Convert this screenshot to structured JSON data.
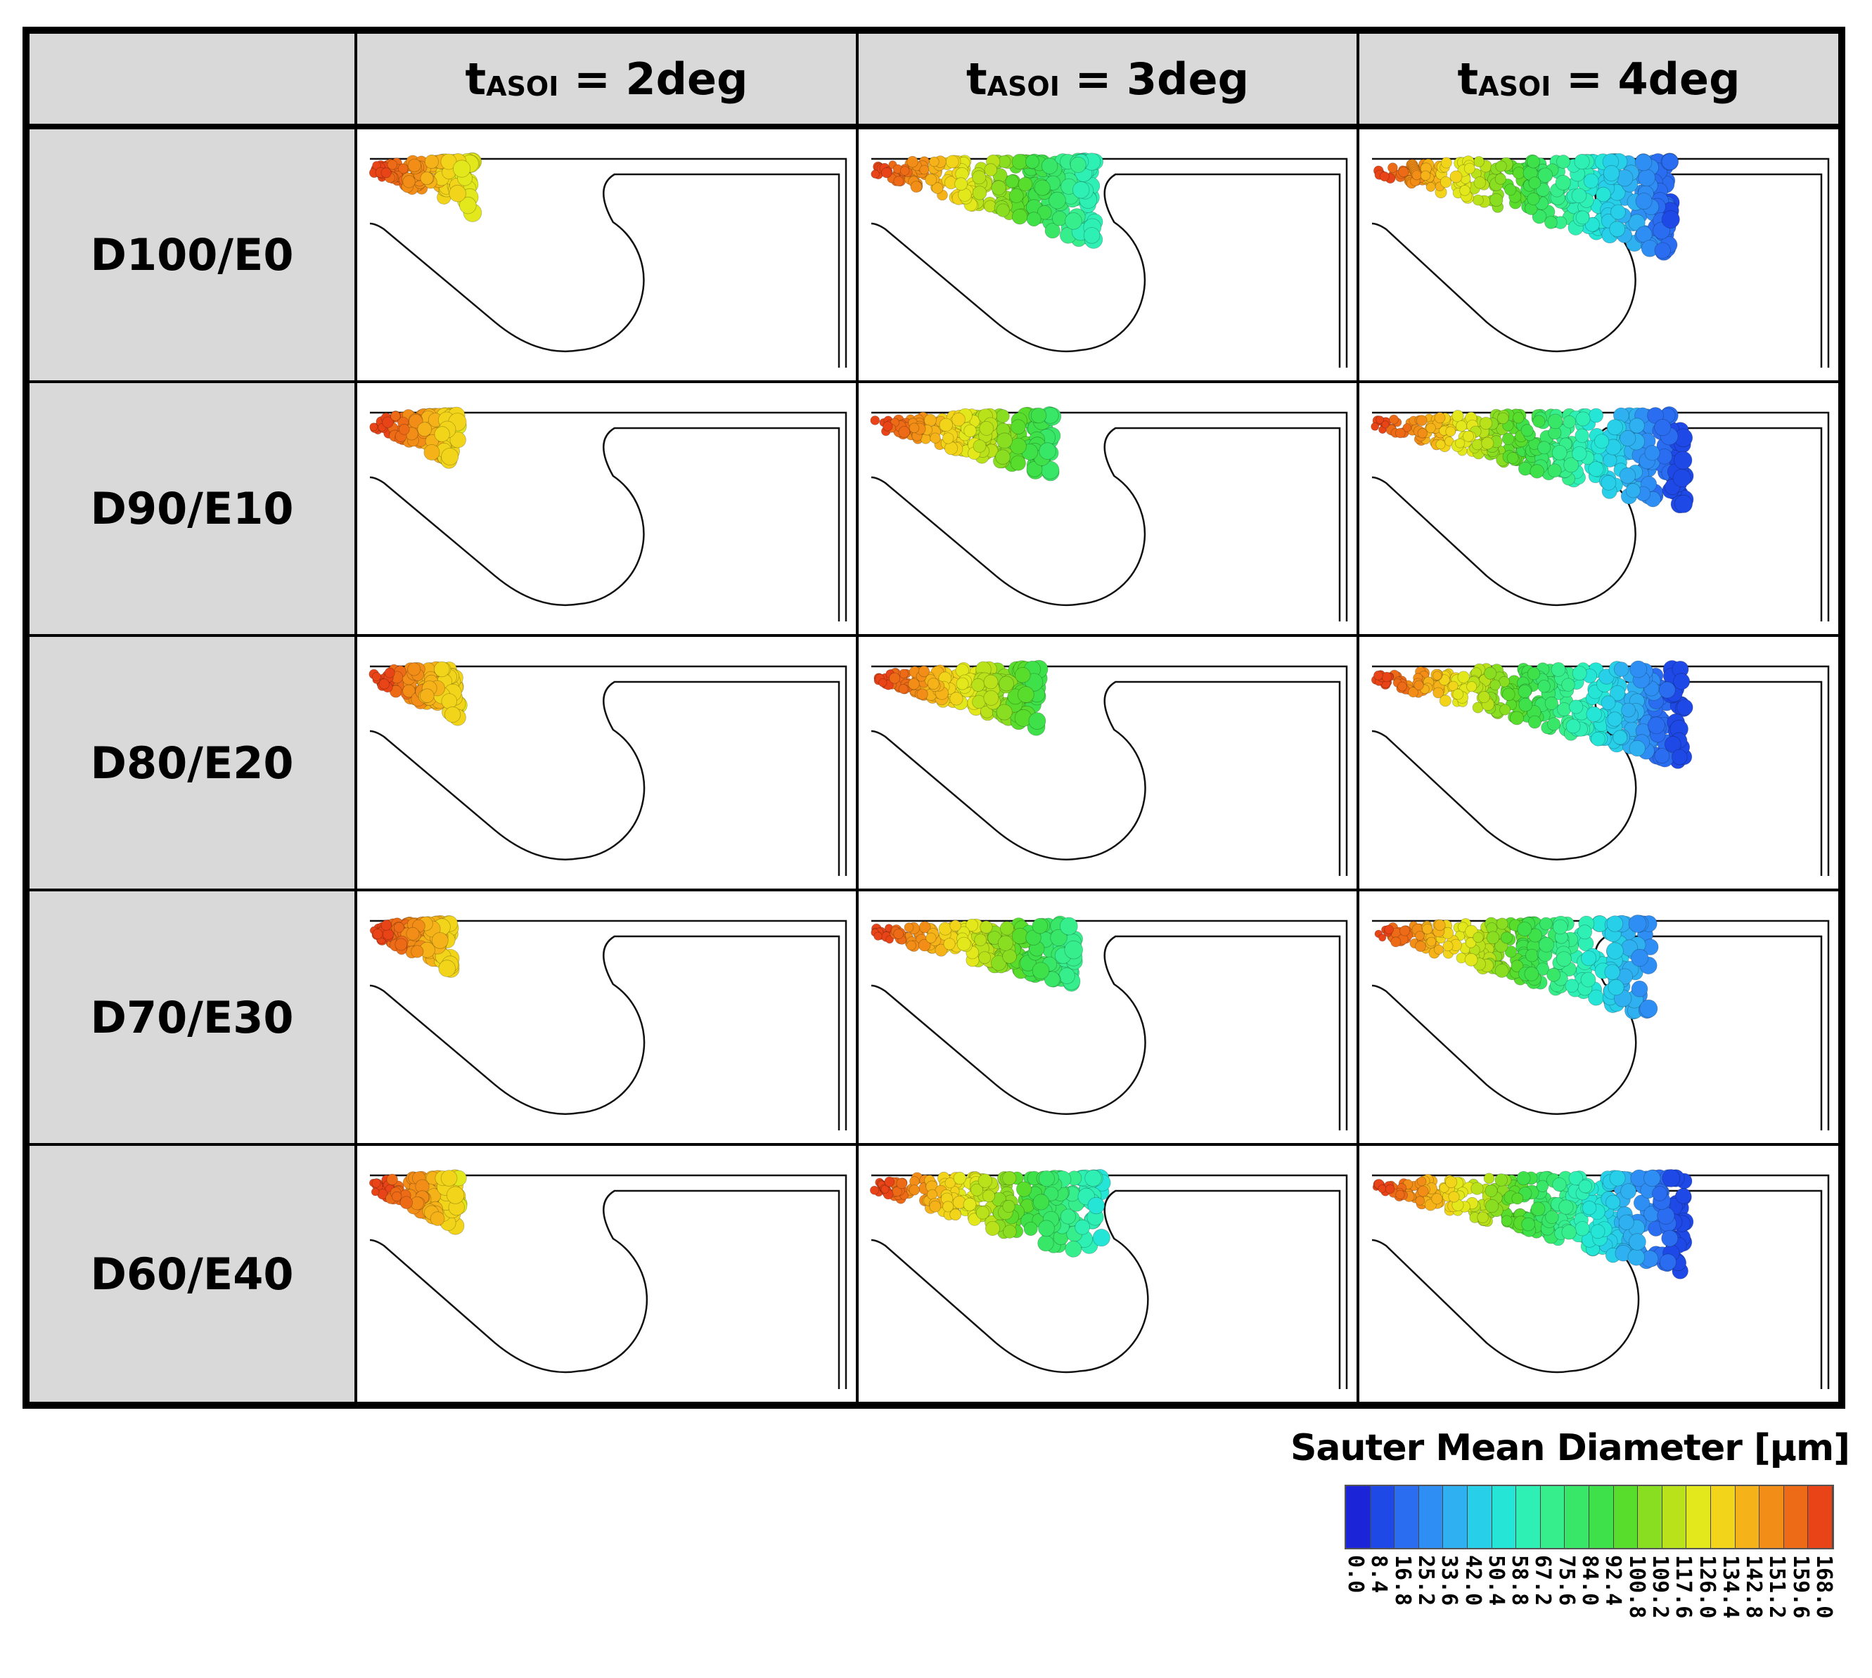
{
  "columns": [
    {
      "prefix": "t",
      "sub": "ASOI",
      "suffix": " = 2deg"
    },
    {
      "prefix": "t",
      "sub": "ASOI",
      "suffix": " = 3deg"
    },
    {
      "prefix": "t",
      "sub": "ASOI",
      "suffix": " = 4deg"
    }
  ],
  "rows": [
    "D100/E0",
    "D90/E10",
    "D80/E20",
    "D70/E30",
    "D60/E40"
  ],
  "legend": {
    "title": "Sauter Mean Diameter [µm]",
    "ticks": [
      "0.0",
      "8.4",
      "16.8",
      "25.2",
      "33.6",
      "42.0",
      "50.4",
      "58.8",
      "67.2",
      "75.6",
      "84.0",
      "92.4",
      "100.8",
      "109.2",
      "117.6",
      "126.0",
      "134.4",
      "142.8",
      "151.2",
      "159.6",
      "168.0"
    ],
    "colors": [
      "#1b24d6",
      "#1f49e6",
      "#2a6df0",
      "#2f8ef3",
      "#2fb0f0",
      "#28cfe9",
      "#25e6d6",
      "#2ff0b4",
      "#36ef8c",
      "#39e768",
      "#3fe14a",
      "#59dd2d",
      "#8ade22",
      "#b9e21b",
      "#e2e81b",
      "#f2d51a",
      "#f5b219",
      "#f28e17",
      "#ed6a17",
      "#e84417"
    ]
  },
  "spray_levels": [
    [
      0.28,
      0.62,
      0.86
    ],
    [
      0.24,
      0.5,
      0.9
    ],
    [
      0.24,
      0.46,
      0.9
    ],
    [
      0.22,
      0.56,
      0.8
    ],
    [
      0.24,
      0.64,
      0.9
    ]
  ]
}
